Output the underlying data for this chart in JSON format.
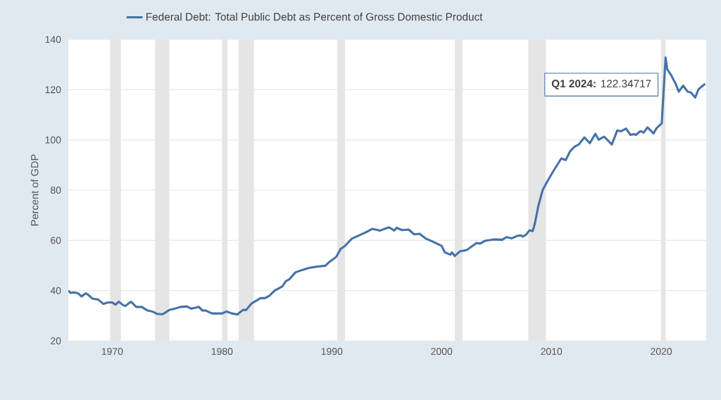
{
  "chart_data": {
    "type": "line",
    "series": [
      {
        "name": "Federal Debt: Total Public Debt as Percent of Gross Domestic Product",
        "color": "#4572a7",
        "x": [
          1966.0,
          1966.2,
          1966.5,
          1966.9,
          1967.2,
          1967.6,
          1967.8,
          1968.2,
          1968.7,
          1969.2,
          1969.6,
          1970.0,
          1970.3,
          1970.6,
          1971.0,
          1971.2,
          1971.7,
          1972.2,
          1972.7,
          1973.2,
          1973.7,
          1974.1,
          1974.6,
          1975.2,
          1975.7,
          1976.2,
          1976.8,
          1977.2,
          1977.9,
          1978.2,
          1978.5,
          1979.1,
          1980.0,
          1980.4,
          1980.9,
          1981.4,
          1981.9,
          1982.2,
          1982.7,
          1983.5,
          1983.9,
          1984.3,
          1984.8,
          1985.5,
          1985.8,
          1986.1,
          1986.7,
          1987.3,
          1987.9,
          1988.7,
          1989.4,
          1989.8,
          1990.4,
          1990.8,
          1991.2,
          1991.8,
          1992.4,
          1993.1,
          1993.7,
          1994.4,
          1995.2,
          1995.7,
          1995.9,
          1996.4,
          1997.0,
          1997.5,
          1998.0,
          1998.6,
          1999.2,
          2000.0,
          2000.3,
          2000.8,
          2000.95,
          2001.2,
          2001.7,
          2002.3,
          2002.8,
          2003.2,
          2003.5,
          2004.0,
          2004.8,
          2005.5,
          2005.9,
          2006.4,
          2006.9,
          2007.2,
          2007.4,
          2007.7,
          2008.0,
          2008.3,
          2008.5,
          2008.8,
          2009.2,
          2009.6,
          2010.1,
          2010.5,
          2010.9,
          2011.3,
          2011.7,
          2012.1,
          2012.5,
          2013.0,
          2013.5,
          2014.0,
          2014.3,
          2014.8,
          2015.5,
          2016.0,
          2016.3,
          2016.8,
          2017.2,
          2017.5,
          2017.7,
          2018.1,
          2018.4,
          2018.75,
          2019.3,
          2019.6,
          2020.05,
          2020.4,
          2020.55,
          2020.9,
          2021.3,
          2021.6,
          2022.0,
          2022.4,
          2022.7,
          2023.1,
          2023.4,
          2024.0
        ],
        "values": [
          40.0,
          39.1,
          39.3,
          38.9,
          37.7,
          38.9,
          38.4,
          36.8,
          36.5,
          34.7,
          35.3,
          35.3,
          34.4,
          35.6,
          34.2,
          33.9,
          35.6,
          33.5,
          33.5,
          32.1,
          31.6,
          30.7,
          30.6,
          32.3,
          32.8,
          33.5,
          33.7,
          32.8,
          33.5,
          32.1,
          32.1,
          30.9,
          30.9,
          31.7,
          30.9,
          30.5,
          32.3,
          32.3,
          34.9,
          37.0,
          37.0,
          37.9,
          40.0,
          41.7,
          43.7,
          44.4,
          47.3,
          48.2,
          49.0,
          49.6,
          49.9,
          51.5,
          53.4,
          56.6,
          57.8,
          60.6,
          61.8,
          63.2,
          64.6,
          63.9,
          65.2,
          63.9,
          65.0,
          64.1,
          64.3,
          62.4,
          62.6,
          60.6,
          59.5,
          57.8,
          55.2,
          54.3,
          55.2,
          53.8,
          55.7,
          56.2,
          57.8,
          59.0,
          58.7,
          59.9,
          60.4,
          60.2,
          61.3,
          60.8,
          61.8,
          62.0,
          61.5,
          62.3,
          64.0,
          63.7,
          66.9,
          73.5,
          80.0,
          83.3,
          87.0,
          89.8,
          92.6,
          92.0,
          95.4,
          97.3,
          98.2,
          101.0,
          98.7,
          102.4,
          100.1,
          101.3,
          98.2,
          103.8,
          103.4,
          104.5,
          102.0,
          102.3,
          102.0,
          103.5,
          102.9,
          105.0,
          102.6,
          104.8,
          106.6,
          132.8,
          128.1,
          125.8,
          122.5,
          119.2,
          121.6,
          119.2,
          118.9,
          116.9,
          120.2,
          122.34717
        ]
      }
    ],
    "ylabel": "Percent of GDP",
    "xlim": [
      1966.0,
      2024.1
    ],
    "xticks": [
      1970,
      1980,
      1990,
      2000,
      2010,
      2020
    ],
    "ylim": [
      20,
      140
    ],
    "yticks": [
      20,
      40,
      60,
      80,
      100,
      120,
      140
    ],
    "grid": "y",
    "legend": "top",
    "marker": "none",
    "line_style": "solid",
    "bands": [
      {
        "axis": "x",
        "from": 1969.8,
        "to": 1970.8,
        "color": "#e5e5e5"
      },
      {
        "axis": "x",
        "from": 1973.9,
        "to": 1975.2,
        "color": "#e5e5e5"
      },
      {
        "axis": "x",
        "from": 1980.0,
        "to": 1980.5,
        "color": "#e5e5e5"
      },
      {
        "axis": "x",
        "from": 1981.5,
        "to": 1982.9,
        "color": "#e5e5e5"
      },
      {
        "axis": "x",
        "from": 1990.5,
        "to": 1991.2,
        "color": "#e5e5e5"
      },
      {
        "axis": "x",
        "from": 2001.2,
        "to": 2001.9,
        "color": "#e5e5e5"
      },
      {
        "axis": "x",
        "from": 2007.9,
        "to": 2009.5,
        "color": "#e5e5e5"
      },
      {
        "axis": "x",
        "from": 2020.0,
        "to": 2020.4,
        "color": "#e5e5e5"
      }
    ],
    "annotations": [
      "**Q1 2024:** 122.34717"
    ]
  }
}
